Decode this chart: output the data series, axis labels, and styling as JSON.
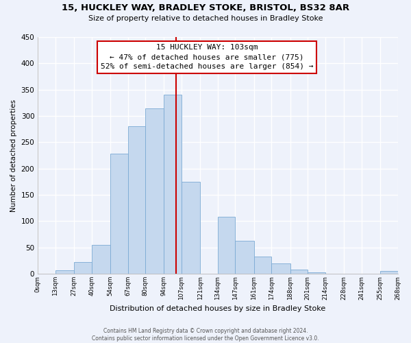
{
  "title": "15, HUCKLEY WAY, BRADLEY STOKE, BRISTOL, BS32 8AR",
  "subtitle": "Size of property relative to detached houses in Bradley Stoke",
  "xlabel": "Distribution of detached houses by size in Bradley Stoke",
  "ylabel": "Number of detached properties",
  "bar_color": "#c5d8ee",
  "bar_edge_color": "#7baad4",
  "bin_edges": [
    0,
    13,
    27,
    40,
    54,
    67,
    80,
    94,
    107,
    121,
    134,
    147,
    161,
    174,
    188,
    201,
    214,
    228,
    241,
    255,
    268
  ],
  "bar_heights": [
    0,
    7,
    22,
    55,
    228,
    280,
    315,
    340,
    175,
    0,
    108,
    62,
    33,
    19,
    8,
    3,
    0,
    0,
    0,
    5
  ],
  "tick_labels": [
    "0sqm",
    "13sqm",
    "27sqm",
    "40sqm",
    "54sqm",
    "67sqm",
    "80sqm",
    "94sqm",
    "107sqm",
    "121sqm",
    "134sqm",
    "147sqm",
    "161sqm",
    "174sqm",
    "188sqm",
    "201sqm",
    "214sqm",
    "228sqm",
    "241sqm",
    "255sqm",
    "268sqm"
  ],
  "vline_x": 103,
  "vline_color": "#cc0000",
  "annotation_title": "15 HUCKLEY WAY: 103sqm",
  "annotation_line1": "← 47% of detached houses are smaller (775)",
  "annotation_line2": "52% of semi-detached houses are larger (854) →",
  "annotation_box_color": "#ffffff",
  "annotation_box_edge": "#cc0000",
  "ylim": [
    0,
    450
  ],
  "yticks": [
    0,
    50,
    100,
    150,
    200,
    250,
    300,
    350,
    400,
    450
  ],
  "footer1": "Contains HM Land Registry data © Crown copyright and database right 2024.",
  "footer2": "Contains public sector information licensed under the Open Government Licence v3.0.",
  "background_color": "#eef2fb",
  "grid_color": "#ffffff"
}
